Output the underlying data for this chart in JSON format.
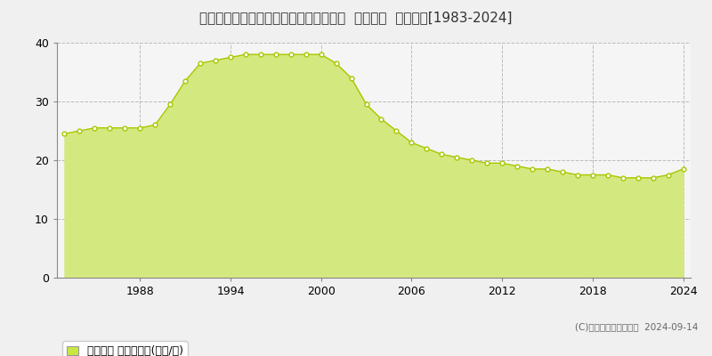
{
  "title": "福井県福井市高木北２丁目１１２番３外  地価公示  地価推移[1983-2024]",
  "years": [
    1983,
    1984,
    1985,
    1986,
    1987,
    1988,
    1989,
    1990,
    1991,
    1992,
    1993,
    1994,
    1995,
    1996,
    1997,
    1998,
    1999,
    2000,
    2001,
    2002,
    2003,
    2004,
    2005,
    2006,
    2007,
    2008,
    2009,
    2010,
    2011,
    2012,
    2013,
    2014,
    2015,
    2016,
    2017,
    2018,
    2019,
    2020,
    2021,
    2022,
    2023,
    2024
  ],
  "values": [
    24.5,
    25.0,
    25.5,
    25.5,
    25.5,
    25.5,
    26.0,
    29.5,
    33.5,
    36.5,
    37.0,
    37.5,
    38.0,
    38.0,
    38.0,
    38.0,
    38.0,
    38.0,
    36.5,
    34.0,
    29.5,
    27.0,
    25.0,
    23.0,
    22.0,
    21.0,
    20.5,
    20.0,
    19.5,
    19.5,
    19.0,
    18.5,
    18.5,
    18.0,
    17.5,
    17.5,
    17.5,
    17.0,
    17.0,
    17.0,
    17.5,
    18.5
  ],
  "line_color": "#a8c800",
  "fill_color": "#d4e880",
  "fill_alpha": 1.0,
  "marker_color": "#ffffff",
  "marker_edge_color": "#a8c800",
  "marker_size": 3.5,
  "marker_linewidth": 1.0,
  "background_color": "#f0f0f0",
  "plot_bg_color": "#f5f5f5",
  "grid_color": "#bbbbbb",
  "grid_style": "--",
  "ylim": [
    0,
    40
  ],
  "yticks": [
    0,
    10,
    20,
    30,
    40
  ],
  "xticks": [
    1988,
    1994,
    2000,
    2006,
    2012,
    2018,
    2024
  ],
  "title_fontsize": 11,
  "tick_fontsize": 9,
  "legend_label": "地価公示 平均坪単価(万円/坪)",
  "legend_marker_color": "#c8e840",
  "copyright_text": "(C)土地価格ドットコム  2024-09-14"
}
